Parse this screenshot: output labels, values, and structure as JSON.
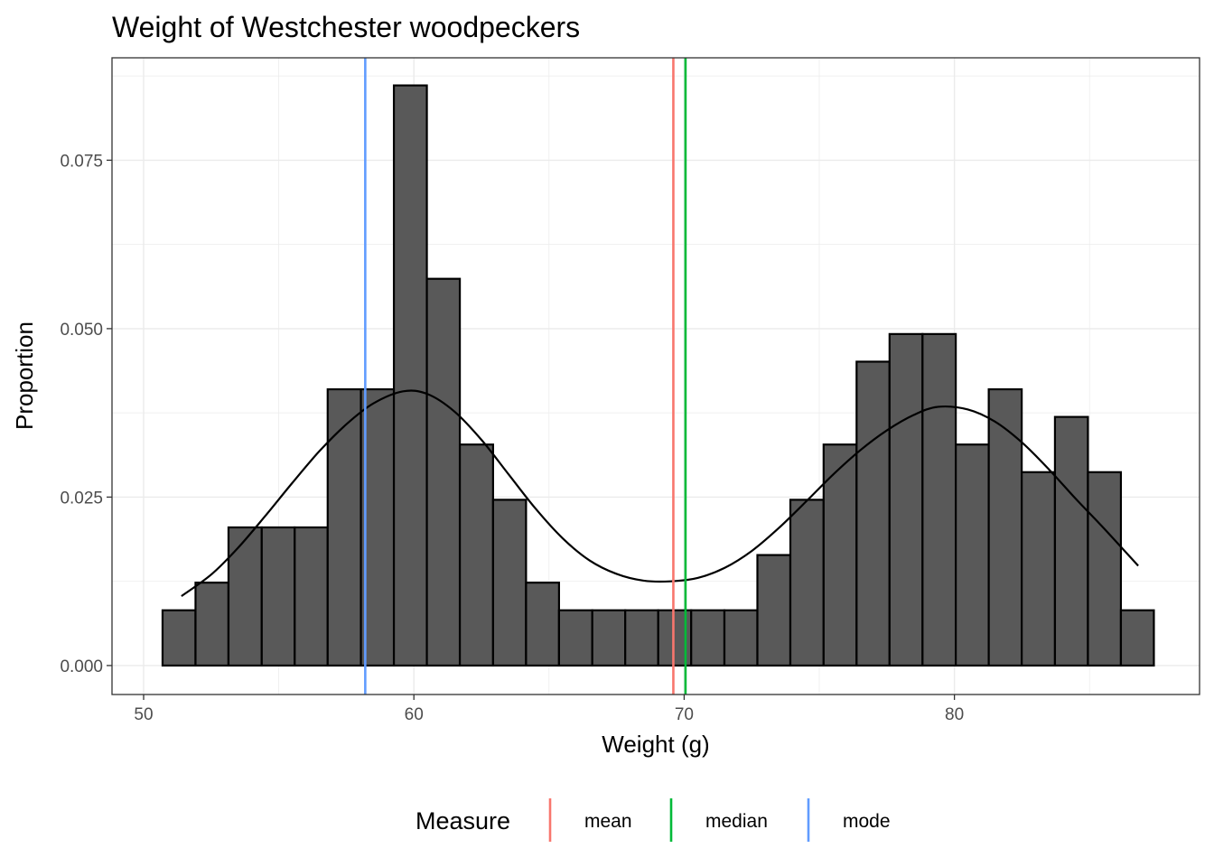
{
  "chart_data": {
    "type": "bar",
    "title": "Weight of  Westchester woodpeckers",
    "xlabel": "Weight (g)",
    "ylabel": "Proportion",
    "xlim": [
      48.83,
      89.07
    ],
    "ylim": [
      -0.0043,
      0.0902
    ],
    "x_ticks": [
      {
        "value": 50,
        "label": "50"
      },
      {
        "value": 60,
        "label": "60"
      },
      {
        "value": 70,
        "label": "70"
      },
      {
        "value": 80,
        "label": "80"
      }
    ],
    "y_ticks": [
      {
        "value": 0.0,
        "label": "0.000"
      },
      {
        "value": 0.025,
        "label": "0.025"
      },
      {
        "value": 0.05,
        "label": "0.050"
      },
      {
        "value": 0.075,
        "label": "0.075"
      }
    ],
    "grid": true,
    "bins": [
      {
        "x0": 50.7,
        "x1": 51.92,
        "value": 0.0082
      },
      {
        "x0": 51.92,
        "x1": 53.14,
        "value": 0.0123
      },
      {
        "x0": 53.14,
        "x1": 54.37,
        "value": 0.0205
      },
      {
        "x0": 54.37,
        "x1": 55.59,
        "value": 0.0205
      },
      {
        "x0": 55.59,
        "x1": 56.81,
        "value": 0.0205
      },
      {
        "x0": 56.81,
        "x1": 58.04,
        "value": 0.041
      },
      {
        "x0": 58.04,
        "x1": 59.26,
        "value": 0.041
      },
      {
        "x0": 59.26,
        "x1": 60.48,
        "value": 0.0861
      },
      {
        "x0": 60.48,
        "x1": 61.7,
        "value": 0.0574
      },
      {
        "x0": 61.7,
        "x1": 62.93,
        "value": 0.0328
      },
      {
        "x0": 62.93,
        "x1": 64.15,
        "value": 0.0246
      },
      {
        "x0": 64.15,
        "x1": 65.37,
        "value": 0.0123
      },
      {
        "x0": 65.37,
        "x1": 66.6,
        "value": 0.0082
      },
      {
        "x0": 66.6,
        "x1": 67.82,
        "value": 0.0082
      },
      {
        "x0": 67.82,
        "x1": 69.04,
        "value": 0.0082
      },
      {
        "x0": 69.04,
        "x1": 70.26,
        "value": 0.0082
      },
      {
        "x0": 70.26,
        "x1": 71.49,
        "value": 0.0082
      },
      {
        "x0": 71.49,
        "x1": 72.71,
        "value": 0.0082
      },
      {
        "x0": 72.71,
        "x1": 73.93,
        "value": 0.0164
      },
      {
        "x0": 73.93,
        "x1": 75.16,
        "value": 0.0246
      },
      {
        "x0": 75.16,
        "x1": 76.38,
        "value": 0.0328
      },
      {
        "x0": 76.38,
        "x1": 77.6,
        "value": 0.0451
      },
      {
        "x0": 77.6,
        "x1": 78.82,
        "value": 0.0492
      },
      {
        "x0": 78.82,
        "x1": 80.05,
        "value": 0.0492
      },
      {
        "x0": 80.05,
        "x1": 81.27,
        "value": 0.0328
      },
      {
        "x0": 81.27,
        "x1": 82.49,
        "value": 0.041
      },
      {
        "x0": 82.49,
        "x1": 83.72,
        "value": 0.0287
      },
      {
        "x0": 83.72,
        "x1": 84.94,
        "value": 0.0369
      },
      {
        "x0": 84.94,
        "x1": 86.16,
        "value": 0.0287
      },
      {
        "x0": 86.16,
        "x1": 87.38,
        "value": 0.0082
      }
    ],
    "density_curve": {
      "x": [
        51.4,
        52.5,
        53.5,
        54.5,
        55.5,
        56.5,
        57.5,
        58.5,
        59.6,
        60.5,
        61.5,
        62.5,
        63.5,
        64.5,
        65.5,
        66.5,
        67.5,
        68.5,
        69.5,
        70.5,
        71.5,
        72.5,
        73.5,
        74.5,
        75.5,
        76.5,
        77.5,
        78.5,
        79.4,
        80.5,
        81.5,
        82.5,
        83.5,
        84.5,
        85.5,
        86.8
      ],
      "y": [
        0.0103,
        0.0135,
        0.0175,
        0.0222,
        0.0271,
        0.0318,
        0.0358,
        0.0389,
        0.0407,
        0.0403,
        0.0377,
        0.0335,
        0.0284,
        0.0233,
        0.0189,
        0.0156,
        0.0136,
        0.0126,
        0.0125,
        0.013,
        0.0145,
        0.017,
        0.0204,
        0.0243,
        0.0283,
        0.0319,
        0.0349,
        0.0372,
        0.0384,
        0.038,
        0.0362,
        0.0331,
        0.0291,
        0.0247,
        0.0205,
        0.0148
      ]
    },
    "reference_lines": [
      {
        "name": "mean",
        "x": 69.6,
        "color": "#F8766D"
      },
      {
        "name": "median",
        "x": 70.05,
        "color": "#00BA38"
      },
      {
        "name": "mode",
        "x": 58.2,
        "color": "#619CFF"
      }
    ],
    "legend": {
      "title": "Measure",
      "position": "bottom",
      "items": [
        {
          "label": "mean",
          "color": "#F8766D"
        },
        {
          "label": "median",
          "color": "#00BA38"
        },
        {
          "label": "mode",
          "color": "#619CFF"
        }
      ]
    },
    "colors": {
      "bar_fill": "#595959",
      "bar_stroke": "#000000",
      "curve": "#000000"
    }
  }
}
